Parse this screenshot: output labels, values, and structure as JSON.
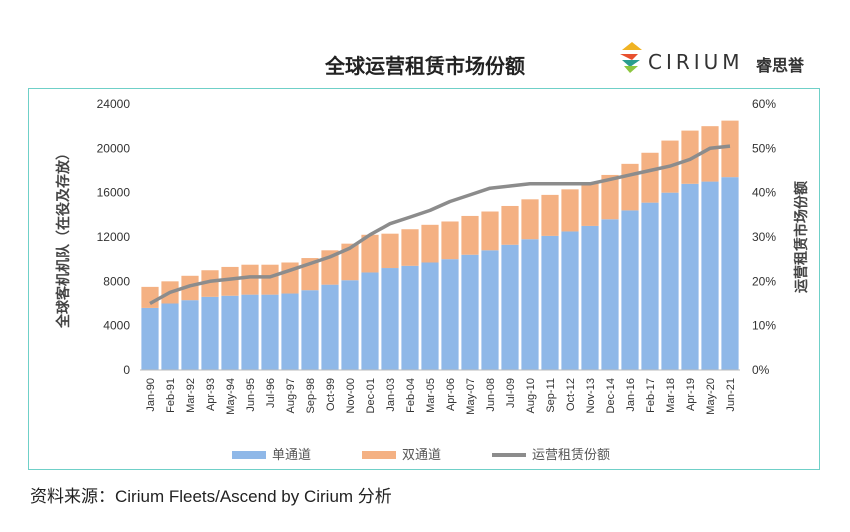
{
  "header": {
    "title": "全球运营租赁市场份额",
    "brand_name": "CIRIUM",
    "brand_cn": "睿思誉"
  },
  "source": "资料来源：Cirium Fleets/Ascend by Cirium 分析",
  "colors": {
    "narrowbody": "#8fb8e8",
    "widebody": "#f4b183",
    "share_line": "#8c8c8c",
    "frame": "#6fd0c8"
  },
  "chart_data": {
    "type": "bar",
    "stacked": true,
    "categories": [
      "Jan-90",
      "Feb-91",
      "Mar-92",
      "Apr-93",
      "May-94",
      "Jun-95",
      "Jul-96",
      "Aug-97",
      "Sep-98",
      "Oct-99",
      "Nov-00",
      "Dec-01",
      "Jan-03",
      "Feb-04",
      "Mar-05",
      "Apr-06",
      "May-07",
      "Jun-08",
      "Jul-09",
      "Aug-10",
      "Sep-11",
      "Oct-12",
      "Nov-13",
      "Dec-14",
      "Jan-16",
      "Feb-17",
      "Mar-18",
      "Apr-19",
      "May-20",
      "Jun-21"
    ],
    "series": [
      {
        "name": "单通道",
        "type": "bar",
        "axis": "left",
        "values": [
          5600,
          6000,
          6300,
          6600,
          6700,
          6800,
          6800,
          6900,
          7200,
          7700,
          8100,
          8800,
          9200,
          9400,
          9700,
          10000,
          10400,
          10800,
          11300,
          11800,
          12100,
          12500,
          13000,
          13600,
          14400,
          15100,
          16000,
          16800,
          17000,
          17400
        ]
      },
      {
        "name": "双通道",
        "type": "bar",
        "axis": "left",
        "values": [
          1900,
          2000,
          2200,
          2400,
          2600,
          2700,
          2700,
          2800,
          2900,
          3100,
          3300,
          3400,
          3100,
          3300,
          3400,
          3400,
          3500,
          3500,
          3500,
          3600,
          3700,
          3800,
          3900,
          4000,
          4200,
          4500,
          4700,
          4800,
          5000,
          5100
        ]
      },
      {
        "name": "运营租赁份额",
        "type": "line",
        "axis": "right",
        "values": [
          0.15,
          0.175,
          0.19,
          0.2,
          0.205,
          0.21,
          0.21,
          0.225,
          0.24,
          0.255,
          0.275,
          0.305,
          0.33,
          0.345,
          0.36,
          0.38,
          0.395,
          0.41,
          0.415,
          0.42,
          0.42,
          0.42,
          0.42,
          0.43,
          0.44,
          0.45,
          0.46,
          0.475,
          0.5,
          0.505
        ]
      }
    ],
    "y_left": {
      "label": "全球客机机队（在役及存放）",
      "min": 0,
      "max": 24000,
      "ticks": [
        "0",
        "4000",
        "8000",
        "12000",
        "16000",
        "20000",
        "24000"
      ]
    },
    "y_right": {
      "label": "运营租赁市场份额",
      "min": 0,
      "max": 0.6,
      "ticks": [
        "0%",
        "10%",
        "20%",
        "30%",
        "40%",
        "50%",
        "60%"
      ]
    },
    "legend": {
      "position": "bottom",
      "items": [
        "单通道",
        "双通道",
        "运营租赁份额"
      ]
    },
    "grid": false
  }
}
